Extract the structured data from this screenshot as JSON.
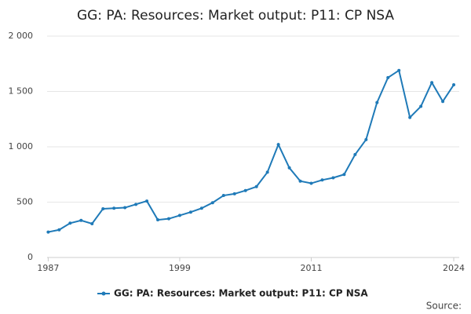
{
  "chart_data": {
    "type": "line",
    "title": "GG: PA: Resources: Market output: P11: CP NSA",
    "source_label": "Source:",
    "x": [
      1987,
      1988,
      1989,
      1990,
      1991,
      1992,
      1993,
      1994,
      1995,
      1996,
      1997,
      1998,
      1999,
      2000,
      2001,
      2002,
      2003,
      2004,
      2005,
      2006,
      2007,
      2008,
      2009,
      2010,
      2011,
      2012,
      2013,
      2014,
      2015,
      2016,
      2017,
      2018,
      2019,
      2020,
      2021,
      2022,
      2023,
      2024
    ],
    "series": [
      {
        "name": "GG: PA: Resources: Market output: P11: CP NSA",
        "color": "#1f7ab8",
        "values": [
          230,
          250,
          310,
          335,
          305,
          440,
          445,
          450,
          480,
          510,
          340,
          350,
          380,
          410,
          445,
          495,
          560,
          575,
          605,
          640,
          770,
          1020,
          810,
          690,
          670,
          700,
          720,
          750,
          930,
          1065,
          1400,
          1625,
          1690,
          1265,
          1365,
          1580,
          1410,
          1560
        ]
      }
    ],
    "xlim": [
      1986.9,
      2024.5
    ],
    "xticks": [
      1987,
      1999,
      2011,
      2024
    ],
    "ylim": [
      0,
      2000
    ],
    "yticks": [
      0,
      {
        "value": 500,
        "label": "500"
      },
      {
        "value": 1000,
        "label": "1 000"
      },
      {
        "value": 1500,
        "label": "1 500"
      },
      {
        "value": 2000,
        "label": "2 000"
      }
    ],
    "grid": true
  }
}
